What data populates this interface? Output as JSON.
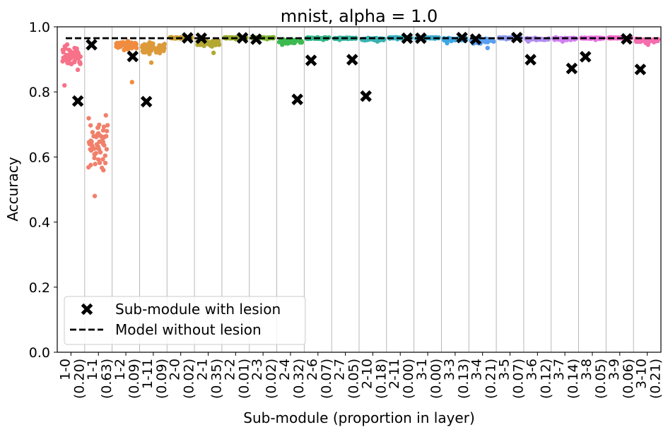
{
  "chart_data": {
    "type": "scatter",
    "title": "mnist, alpha = 1.0",
    "xlabel": "Sub-module (proportion in layer)",
    "ylabel": "Accuracy",
    "ylim": [
      0.0,
      1.0
    ],
    "yticks": [
      "0.0",
      "0.2",
      "0.4",
      "0.6",
      "0.8",
      "1.0"
    ],
    "grid": "vertical",
    "baseline": 0.965,
    "legend": {
      "placement": "lower-left",
      "entries": [
        {
          "label": "Sub-module with lesion",
          "marker": "X",
          "color": "#000000"
        },
        {
          "label": "Model without lesion",
          "marker": "dashed-line",
          "color": "#000000"
        }
      ]
    },
    "categories": [
      {
        "name": "1-0",
        "proportion": "(0.20)",
        "color": "#f77189",
        "center": 0.91,
        "spread": 0.035,
        "min": 0.82,
        "lesion": 0.772
      },
      {
        "name": "1-1",
        "proportion": "(0.63)",
        "color": "#f0806b",
        "center": 0.64,
        "spread": 0.08,
        "min": 0.48,
        "lesion": 0.945
      },
      {
        "name": "1-2",
        "proportion": "(0.09)",
        "color": "#ef8c3f",
        "center": 0.945,
        "spread": 0.012,
        "min": 0.83,
        "lesion": 0.909
      },
      {
        "name": "1-11",
        "proportion": "(0.09)",
        "color": "#dc9a39",
        "center": 0.935,
        "spread": 0.018,
        "min": 0.89,
        "lesion": 0.77
      },
      {
        "name": "2-0",
        "proportion": "(0.02)",
        "color": "#c79f32",
        "center": 0.966,
        "spread": 0.002,
        "min": 0.962,
        "lesion": 0.966
      },
      {
        "name": "2-1",
        "proportion": "(0.35)",
        "color": "#b3a832",
        "center": 0.95,
        "spread": 0.01,
        "min": 0.92,
        "lesion": 0.965
      },
      {
        "name": "2-2",
        "proportion": "(0.01)",
        "color": "#9cad32",
        "center": 0.966,
        "spread": 0.002,
        "min": 0.962,
        "lesion": 0.966
      },
      {
        "name": "2-3",
        "proportion": "(0.02)",
        "color": "#7db431",
        "center": 0.966,
        "spread": 0.002,
        "min": 0.962,
        "lesion": 0.962
      },
      {
        "name": "2-4",
        "proportion": "(0.32)",
        "color": "#3cba50",
        "center": 0.955,
        "spread": 0.006,
        "min": 0.945,
        "lesion": 0.777
      },
      {
        "name": "2-6",
        "proportion": "(0.07)",
        "color": "#34b88a",
        "center": 0.965,
        "spread": 0.002,
        "min": 0.96,
        "lesion": 0.897
      },
      {
        "name": "2-7",
        "proportion": "(0.05)",
        "color": "#36b6a0",
        "center": 0.965,
        "spread": 0.002,
        "min": 0.96,
        "lesion": 0.899
      },
      {
        "name": "2-10",
        "proportion": "(0.18)",
        "color": "#37b3b1",
        "center": 0.962,
        "spread": 0.004,
        "min": 0.955,
        "lesion": 0.787
      },
      {
        "name": "2-11",
        "proportion": "(0.00)",
        "color": "#39b0bf",
        "center": 0.966,
        "spread": 0.002,
        "min": 0.962,
        "lesion": 0.965
      },
      {
        "name": "3-1",
        "proportion": "(0.00)",
        "color": "#3badce",
        "center": 0.966,
        "spread": 0.002,
        "min": 0.962,
        "lesion": 0.965
      },
      {
        "name": "3-3",
        "proportion": "(0.13)",
        "color": "#3ca6e0",
        "center": 0.962,
        "spread": 0.004,
        "min": 0.95,
        "lesion": 0.967
      },
      {
        "name": "3-4",
        "proportion": "(0.21)",
        "color": "#5b9ff0",
        "center": 0.958,
        "spread": 0.008,
        "min": 0.935,
        "lesion": 0.962
      },
      {
        "name": "3-5",
        "proportion": "(0.07)",
        "color": "#8c98ef",
        "center": 0.966,
        "spread": 0.002,
        "min": 0.962,
        "lesion": 0.967
      },
      {
        "name": "3-6",
        "proportion": "(0.12)",
        "color": "#b18cef",
        "center": 0.962,
        "spread": 0.003,
        "min": 0.955,
        "lesion": 0.899
      },
      {
        "name": "3-7",
        "proportion": "(0.14)",
        "color": "#cf7fee",
        "center": 0.963,
        "spread": 0.003,
        "min": 0.955,
        "lesion": 0.872
      },
      {
        "name": "3-8",
        "proportion": "(0.05)",
        "color": "#e971e0",
        "center": 0.965,
        "spread": 0.002,
        "min": 0.96,
        "lesion": 0.908
      },
      {
        "name": "3-9",
        "proportion": "(0.06)",
        "color": "#f26ccb",
        "center": 0.966,
        "spread": 0.002,
        "min": 0.962,
        "lesion": 0.963
      },
      {
        "name": "3-10",
        "proportion": "(0.21)",
        "color": "#f56daf",
        "center": 0.958,
        "spread": 0.006,
        "min": 0.945,
        "lesion": 0.869
      }
    ]
  }
}
